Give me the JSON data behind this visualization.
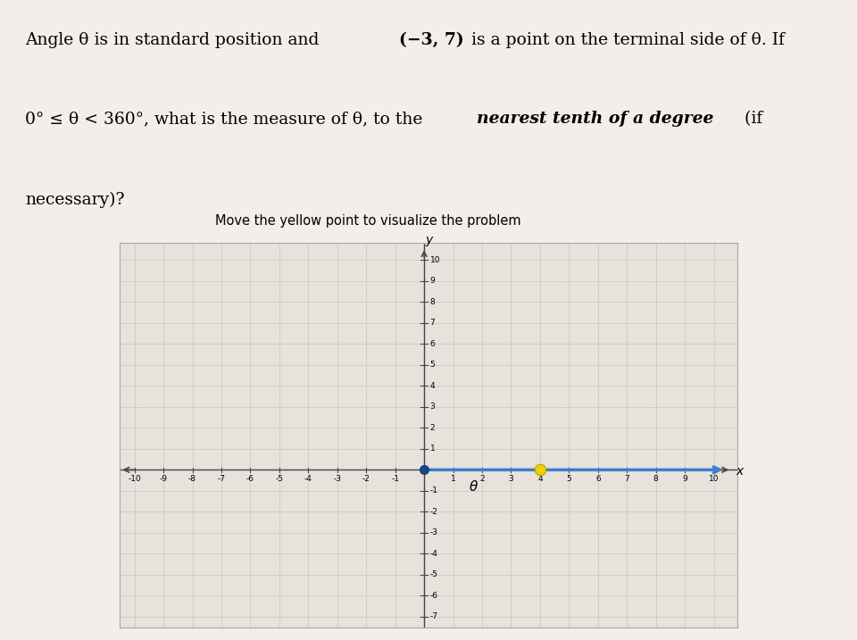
{
  "subtitle": "Move the yellow point to visualize the problem",
  "grid_color": "#c8c4be",
  "fig_bg": "#f2eeea",
  "plot_bg": "#e6e2dc",
  "axis_color": "#444444",
  "ray_color": "#3a80cc",
  "origin_dot_color": "#1a4488",
  "yellow_dot_color": "#f0d000",
  "yellow_dot_x": 4,
  "yellow_dot_y": 0,
  "xlim": [
    -10.5,
    10.8
  ],
  "ylim": [
    -7.5,
    10.8
  ],
  "xlabel": "x",
  "ylabel": "y",
  "theta_label": "θ"
}
